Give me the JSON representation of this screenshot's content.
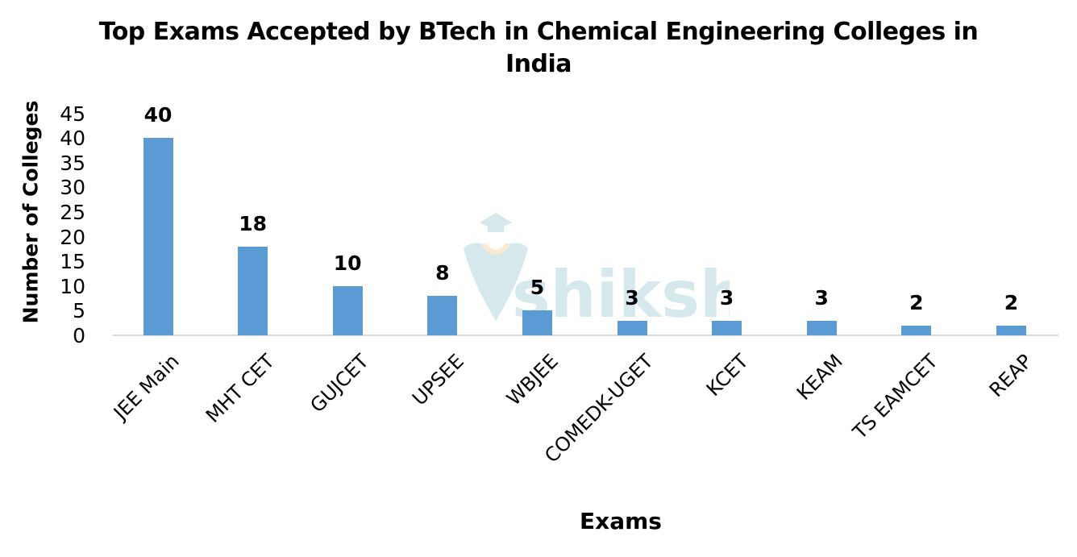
{
  "chart_data": {
    "type": "bar",
    "title": "Top Exams Accepted by BTech in Chemical Engineering Colleges in India",
    "title_lines": [
      "Top Exams Accepted by BTech in Chemical Engineering Colleges in",
      "India"
    ],
    "xlabel": "Exams",
    "ylabel": "Number of Colleges",
    "categories": [
      "JEE Main",
      "MHT CET",
      "GUJCET",
      "UPSEE",
      "WBJEE",
      "COMEDK-UGET",
      "KCET",
      "KEAM",
      "TS EAMCET",
      "REAP"
    ],
    "values": [
      40,
      18,
      10,
      8,
      5,
      3,
      3,
      3,
      2,
      2
    ],
    "ylim": [
      0,
      45
    ],
    "yticks": [
      "0",
      "5",
      "10",
      "15",
      "20",
      "25",
      "30",
      "35",
      "40",
      "45"
    ],
    "grid": false,
    "legend": null,
    "data_labels": true,
    "bar_color": "#5b9bd5"
  },
  "watermark": {
    "text": "shiksha",
    "icon": "graduation-cap-logo-icon"
  }
}
